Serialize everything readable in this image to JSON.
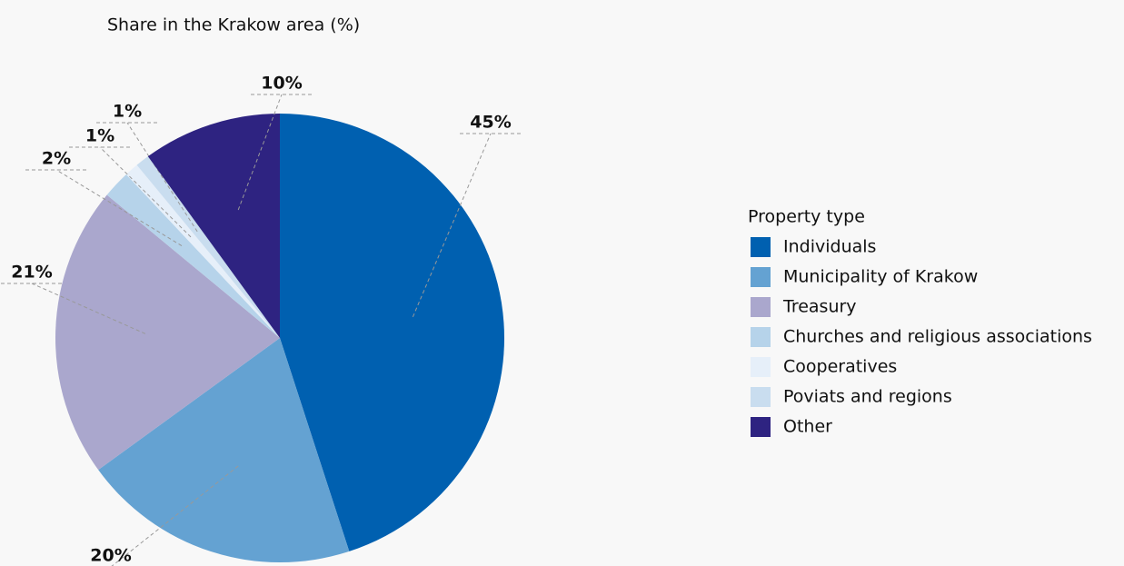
{
  "chart_data": {
    "type": "pie",
    "title": "Share in the Krakow area (%)",
    "legend_title": "Property type",
    "categories": [
      "Individuals",
      "Municipality of Krakow",
      "Treasury",
      "Churches and religious associations",
      "Cooperatives",
      "Poviats and regions",
      "Other"
    ],
    "values": [
      45,
      20,
      21,
      2,
      1,
      1,
      10
    ],
    "value_labels": [
      "45%",
      "20%",
      "21%",
      "2%",
      "1%",
      "1%",
      "10%"
    ],
    "colors": [
      "#0060b0",
      "#64a2d2",
      "#aaa7cd",
      "#b6d3ea",
      "#e6eff9",
      "#c9ddef",
      "#2e2381"
    ],
    "legend": "right"
  }
}
